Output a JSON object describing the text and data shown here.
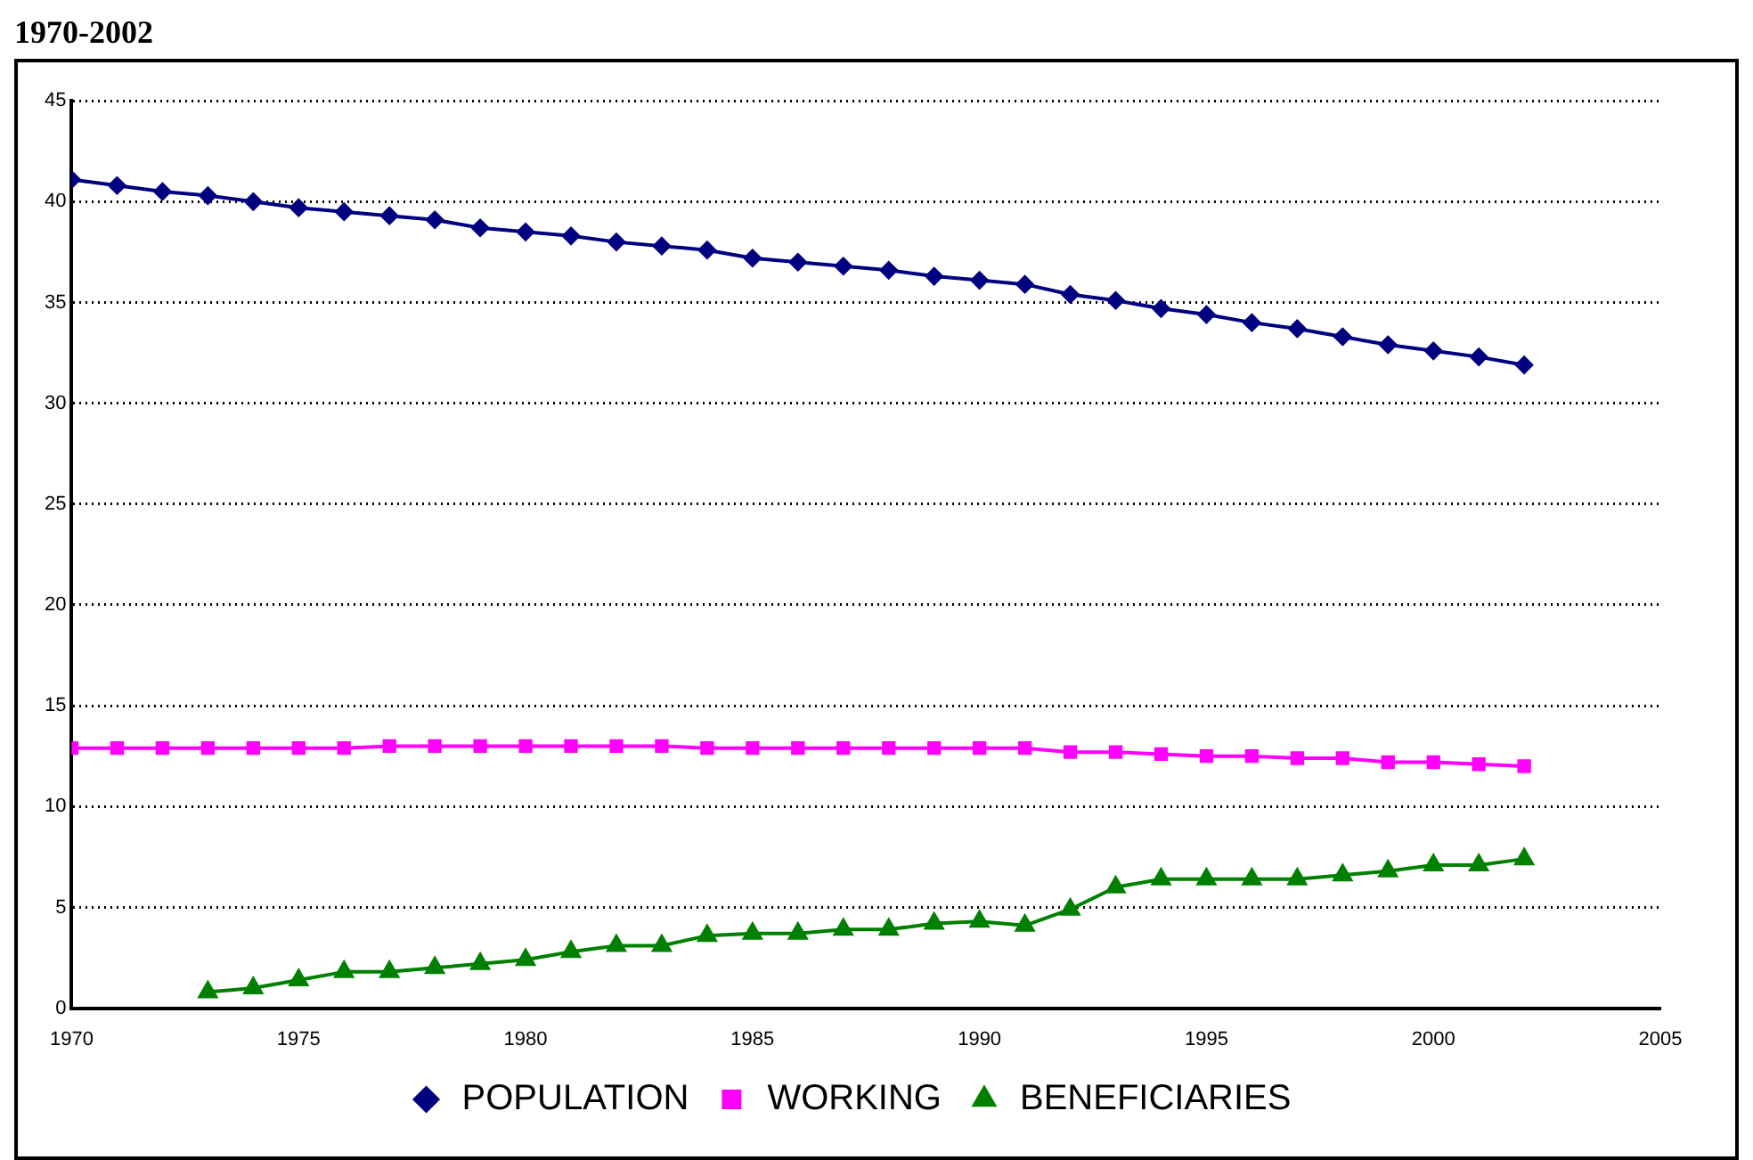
{
  "chart_data": {
    "type": "line",
    "title": "1970-2002",
    "x": [
      1970,
      1971,
      1972,
      1973,
      1974,
      1975,
      1976,
      1977,
      1978,
      1979,
      1980,
      1981,
      1982,
      1983,
      1984,
      1985,
      1986,
      1987,
      1988,
      1989,
      1990,
      1991,
      1992,
      1993,
      1994,
      1995,
      1996,
      1997,
      1998,
      1999,
      2000,
      2001,
      2002
    ],
    "series": [
      {
        "name": "POPULATION",
        "color": "#000080",
        "marker": "diamond",
        "values": [
          41.1,
          40.8,
          40.5,
          40.3,
          40.0,
          39.7,
          39.5,
          39.3,
          39.1,
          38.7,
          38.5,
          38.3,
          38.0,
          37.8,
          37.6,
          37.2,
          37.0,
          36.8,
          36.6,
          36.3,
          36.1,
          35.9,
          35.4,
          35.1,
          34.7,
          34.4,
          34.0,
          33.7,
          33.3,
          32.9,
          32.6,
          32.3,
          31.9
        ]
      },
      {
        "name": "WORKING",
        "color": "#ff00ff",
        "marker": "square",
        "values": [
          12.9,
          12.9,
          12.9,
          12.9,
          12.9,
          12.9,
          12.9,
          13.0,
          13.0,
          13.0,
          13.0,
          13.0,
          13.0,
          13.0,
          12.9,
          12.9,
          12.9,
          12.9,
          12.9,
          12.9,
          12.9,
          12.9,
          12.7,
          12.7,
          12.6,
          12.5,
          12.5,
          12.4,
          12.4,
          12.2,
          12.2,
          12.1,
          12.0
        ]
      },
      {
        "name": "BENEFICIARIES",
        "color": "#008000",
        "marker": "triangle",
        "values": [
          null,
          null,
          null,
          0.8,
          1.0,
          1.4,
          1.8,
          1.8,
          2.0,
          2.2,
          2.4,
          2.8,
          3.1,
          3.1,
          3.6,
          3.7,
          3.7,
          3.9,
          3.9,
          4.2,
          4.3,
          4.1,
          4.9,
          6.0,
          6.4,
          6.4,
          6.4,
          6.4,
          6.6,
          6.8,
          7.1,
          7.1,
          7.4
        ]
      }
    ],
    "xlim": [
      1970,
      2005
    ],
    "xticks": [
      1970,
      1975,
      1980,
      1985,
      1990,
      1995,
      2000,
      2005
    ],
    "ylim": [
      0,
      45
    ],
    "yticks": [
      0,
      5,
      10,
      15,
      20,
      25,
      30,
      35,
      40,
      45
    ],
    "grid": "y",
    "legend": "bottom",
    "line_style": "solid"
  }
}
